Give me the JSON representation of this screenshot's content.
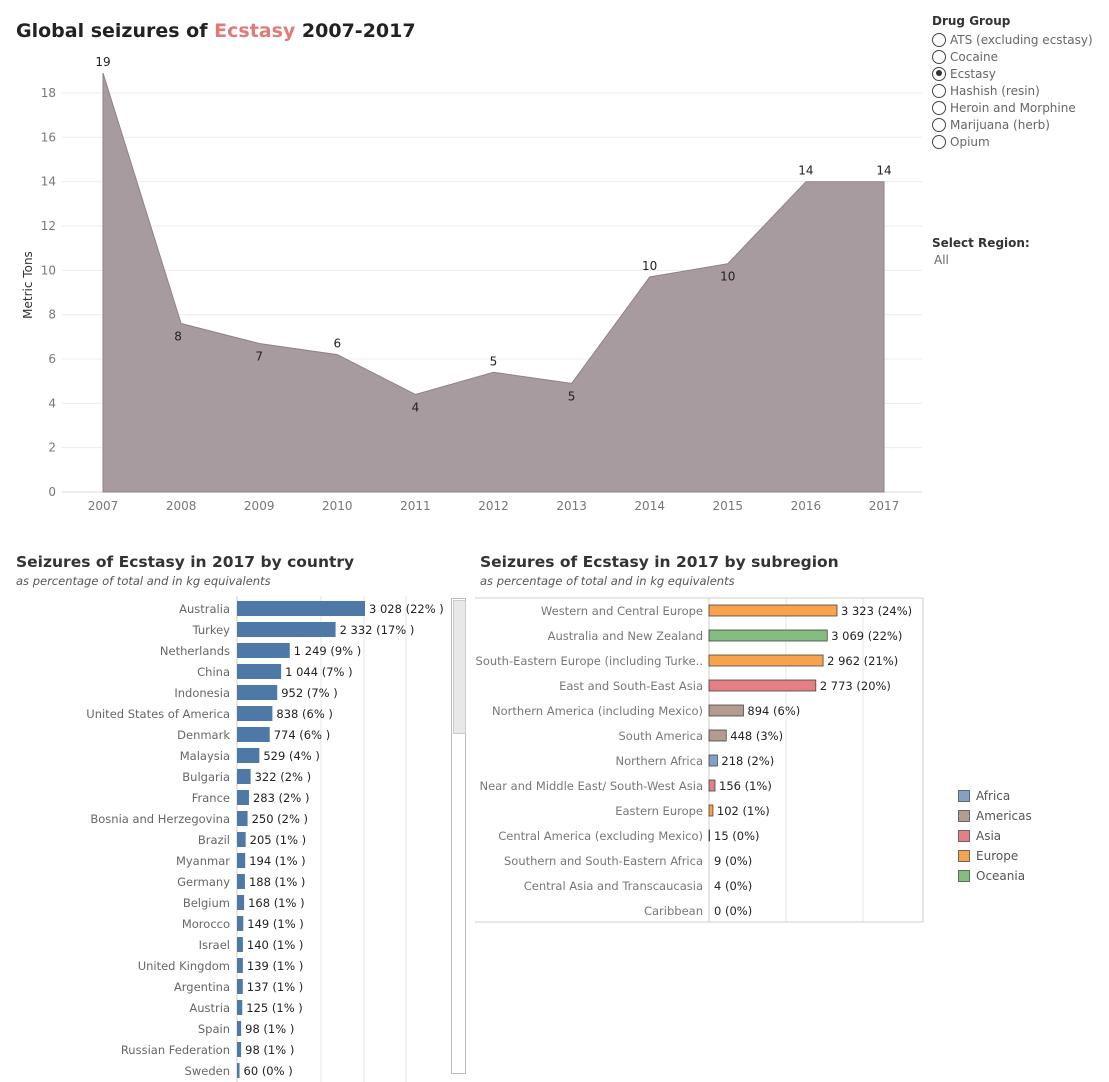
{
  "title": {
    "prefix": "Global seizures of",
    "drug": "Ecstasy",
    "suffix": "2007-2017"
  },
  "drug_group": {
    "label": "Drug Group",
    "options": [
      "ATS (excluding ecstasy)",
      "Cocaine",
      "Ecstasy",
      "Hashish (resin)",
      "Heroin and Morphine",
      "Marijuana (herb)",
      "Opium"
    ],
    "selected": "Ecstasy"
  },
  "region": {
    "label": "Select Region:",
    "value": "All"
  },
  "colors": {
    "area": "#a89ba0",
    "drug": "#e07b7b",
    "country_bar": "#4e79a7",
    "Africa": "#7fa2c6",
    "Americas": "#b39c8f",
    "Asia": "#e57f86",
    "Europe": "#f8a24b",
    "Oceania": "#84bd7f"
  },
  "chart_data": [
    {
      "type": "area",
      "title": "Global seizures of Ecstasy 2007-2017",
      "ylabel": "Metric Tons",
      "x": [
        2007,
        2008,
        2009,
        2010,
        2011,
        2012,
        2013,
        2014,
        2015,
        2016,
        2017
      ],
      "y": [
        18.9,
        7.6,
        6.7,
        6.2,
        4.4,
        5.4,
        4.9,
        9.7,
        10.3,
        14.0,
        14.0
      ],
      "labels": [
        "19",
        "8",
        "7",
        "6",
        "4",
        "5",
        "5",
        "10",
        "10",
        "14",
        "14"
      ],
      "ylim": [
        0,
        19.4
      ],
      "yticks": [
        0,
        2,
        4,
        6,
        8,
        10,
        12,
        14,
        16,
        18
      ],
      "grid": true
    },
    {
      "type": "bar",
      "title": "Seizures of Ecstasy  in 2017 by country",
      "subtitle": "as percentage of total and in kg equivalents",
      "orientation": "horizontal",
      "categories": [
        "Australia",
        "Turkey",
        "Netherlands",
        "China",
        "Indonesia",
        "United States of America",
        "Denmark",
        "Malaysia",
        "Bulgaria",
        "France",
        "Bosnia and Herzegovina",
        "Brazil",
        "Myanmar",
        "Germany",
        "Belgium",
        "Morocco",
        "Israel",
        "United Kingdom",
        "Argentina",
        "Austria",
        "Spain",
        "Russian Federation",
        "Sweden"
      ],
      "values": [
        3028,
        2332,
        1249,
        1044,
        952,
        838,
        774,
        529,
        322,
        283,
        250,
        205,
        194,
        188,
        168,
        149,
        140,
        139,
        137,
        125,
        98,
        98,
        60
      ],
      "labels": [
        "3 028 (22% )",
        "2 332 (17% )",
        "1 249 (9% )",
        "1 044 (7% )",
        "952 (7% )",
        "838 (6% )",
        "774 (6% )",
        "529 (4% )",
        "322 (2% )",
        "283 (2% )",
        "250 (2% )",
        "205 (1% )",
        "194 (1% )",
        "188 (1% )",
        "168 (1% )",
        "149 (1% )",
        "140 (1% )",
        "139 (1% )",
        "137 (1% )",
        "125 (1% )",
        "98 (1% )",
        "98 (1% )",
        "60 (0% )"
      ],
      "xlim": [
        0,
        5000
      ]
    },
    {
      "type": "bar",
      "title": "Seizures of Ecstasy in 2017 by subregion",
      "subtitle": "as percentage of total and in kg equivalents",
      "orientation": "horizontal",
      "categories": [
        "Western and Central Europe",
        "Australia and New Zealand",
        "South-Eastern Europe (including Turke..",
        "East and South-East Asia",
        "Northern America (including Mexico)",
        "South America",
        "Northern Africa",
        "Near and Middle East/ South-West Asia",
        "Eastern Europe",
        "Central America (excluding Mexico)",
        "Southern and South-Eastern Africa",
        "Central Asia and Transcaucasia",
        "Caribbean"
      ],
      "values": [
        3323,
        3069,
        2962,
        2773,
        894,
        448,
        218,
        156,
        102,
        15,
        9,
        4,
        0
      ],
      "labels": [
        "3 323 (24%)",
        "3 069 (22%)",
        "2 962 (21%)",
        "2 773 (20%)",
        "894 (6%)",
        "448 (3%)",
        "218 (2%)",
        "156 (1%)",
        "102 (1%)",
        "15 (0%)",
        "9 (0%)",
        "4 (0%)",
        "0 (0%)"
      ],
      "groups": [
        "Europe",
        "Oceania",
        "Europe",
        "Asia",
        "Americas",
        "Americas",
        "Africa",
        "Asia",
        "Europe",
        "Americas",
        "Africa",
        "Asia",
        "Americas"
      ],
      "legend": [
        "Africa",
        "Americas",
        "Asia",
        "Europe",
        "Oceania"
      ],
      "xlim": [
        0,
        6000
      ]
    }
  ]
}
